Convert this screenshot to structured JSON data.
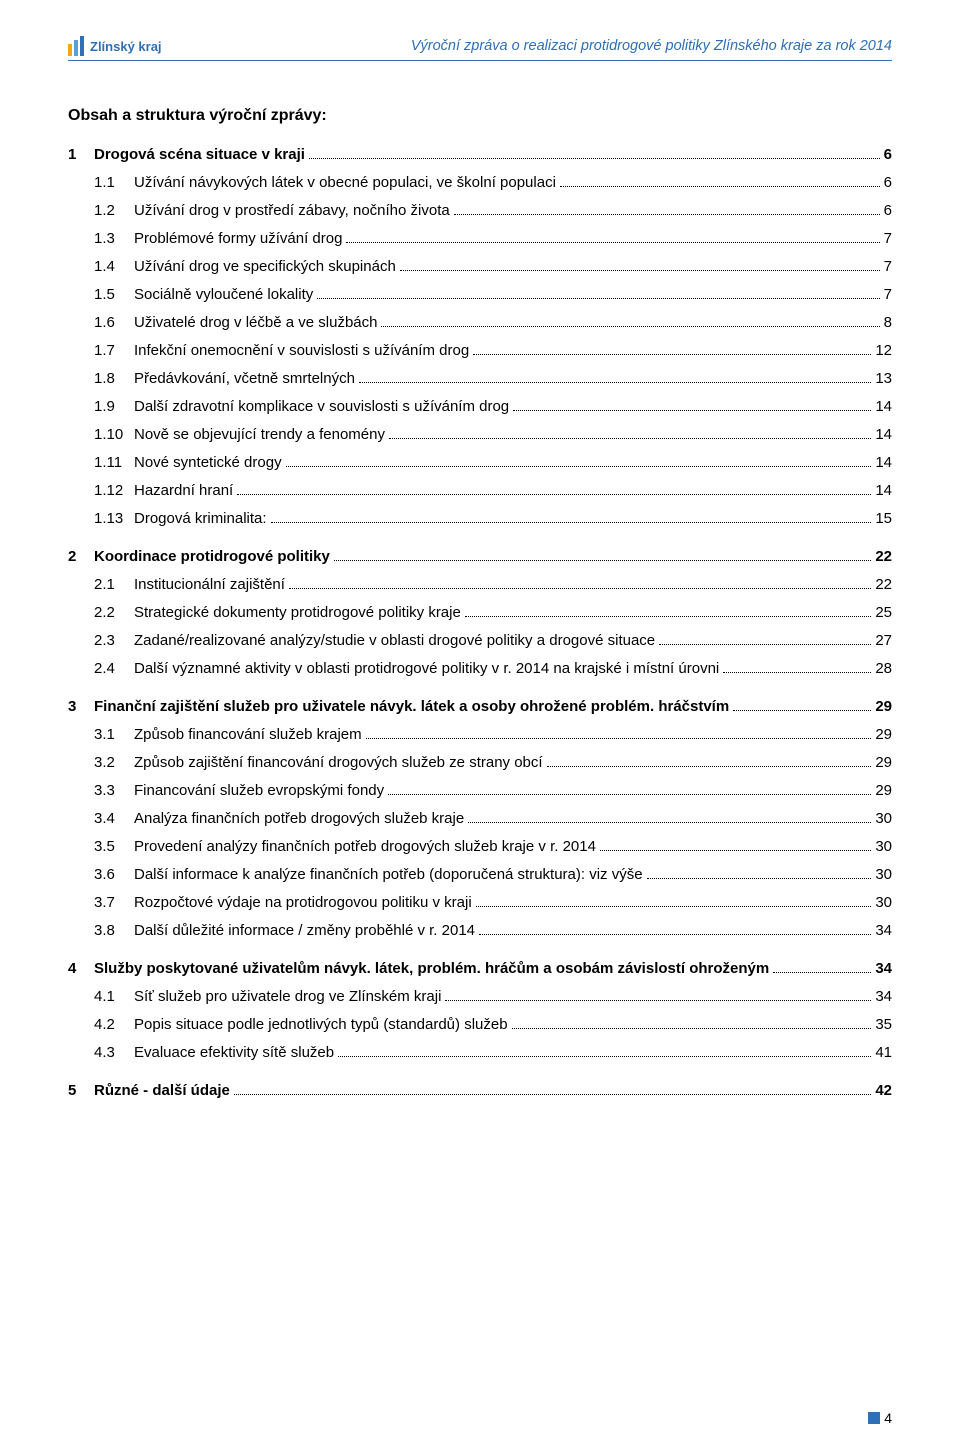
{
  "header": {
    "logo_text": "Zlínský kraj",
    "title": "Výroční zpráva o realizaci protidrogové politiky Zlínského kraje za rok 2014"
  },
  "colors": {
    "brand_blue": "#2e6fb6",
    "brand_orange": "#f3a712",
    "text": "#000000",
    "background": "#ffffff"
  },
  "content_title": "Obsah a struktura výroční zprávy:",
  "toc": [
    {
      "level": 1,
      "num": "1",
      "label": "Drogová scéna situace v kraji",
      "page": "6"
    },
    {
      "level": 2,
      "num": "1.1",
      "label": "Užívání návykových látek v obecné populaci, ve školní populaci",
      "page": "6"
    },
    {
      "level": 2,
      "num": "1.2",
      "label": "Užívání drog v prostředí zábavy, nočního života",
      "page": "6"
    },
    {
      "level": 2,
      "num": "1.3",
      "label": "Problémové formy užívání drog",
      "page": "7"
    },
    {
      "level": 2,
      "num": "1.4",
      "label": "Užívání drog ve specifických skupinách",
      "page": "7"
    },
    {
      "level": 2,
      "num": "1.5",
      "label": "Sociálně vyloučené lokality",
      "page": "7"
    },
    {
      "level": 2,
      "num": "1.6",
      "label": "Uživatelé drog v léčbě a ve službách",
      "page": "8"
    },
    {
      "level": 2,
      "num": "1.7",
      "label": "Infekční onemocnění v souvislosti s užíváním drog",
      "page": "12"
    },
    {
      "level": 2,
      "num": "1.8",
      "label": "Předávkování, včetně smrtelných",
      "page": "13"
    },
    {
      "level": 2,
      "num": "1.9",
      "label": "Další zdravotní komplikace v souvislosti s užíváním drog",
      "page": "14"
    },
    {
      "level": 2,
      "num": "1.10",
      "label": "Nově se objevující trendy a fenomény",
      "page": "14"
    },
    {
      "level": 2,
      "num": "1.11",
      "label": "Nové syntetické drogy",
      "page": "14"
    },
    {
      "level": 2,
      "num": "1.12",
      "label": "Hazardní hraní",
      "page": "14"
    },
    {
      "level": 2,
      "num": "1.13",
      "label": "Drogová kriminalita:",
      "page": "15"
    },
    {
      "level": 1,
      "num": "2",
      "label": "Koordinace protidrogové politiky",
      "page": "22"
    },
    {
      "level": 2,
      "num": "2.1",
      "label": "Institucionální zajištění",
      "page": "22"
    },
    {
      "level": 2,
      "num": "2.2",
      "label": "Strategické dokumenty protidrogové politiky kraje",
      "page": "25"
    },
    {
      "level": 2,
      "num": "2.3",
      "label": "Zadané/realizované analýzy/studie v oblasti drogové politiky a drogové situace",
      "page": "27"
    },
    {
      "level": 2,
      "num": "2.4",
      "label": "Další významné aktivity v oblasti protidrogové politiky v r. 2014 na krajské i místní úrovni",
      "page": "28"
    },
    {
      "level": 1,
      "num": "3",
      "label": "Finanční zajištění služeb pro uživatele návyk. látek a osoby ohrožené problém. hráčstvím",
      "page": "29"
    },
    {
      "level": 2,
      "num": "3.1",
      "label": "Způsob financování služeb krajem",
      "page": "29"
    },
    {
      "level": 2,
      "num": "3.2",
      "label": "Způsob zajištění financování drogových služeb ze strany obcí",
      "page": "29"
    },
    {
      "level": 2,
      "num": "3.3",
      "label": "Financování služeb evropskými fondy",
      "page": "29"
    },
    {
      "level": 2,
      "num": "3.4",
      "label": "Analýza finančních potřeb drogových služeb kraje",
      "page": "30"
    },
    {
      "level": 2,
      "num": "3.5",
      "label": "Provedení analýzy finančních potřeb drogových služeb kraje v r. 2014",
      "page": "30"
    },
    {
      "level": 2,
      "num": "3.6",
      "label": "Další informace k analýze finančních potřeb (doporučená struktura): viz výše",
      "page": "30"
    },
    {
      "level": 2,
      "num": "3.7",
      "label": "Rozpočtové výdaje na protidrogovou politiku v kraji",
      "page": "30"
    },
    {
      "level": 2,
      "num": "3.8",
      "label": "Další důležité informace / změny proběhlé v r. 2014",
      "page": "34"
    },
    {
      "level": 1,
      "num": "4",
      "label": "Služby poskytované uživatelům návyk. látek, problém. hráčům a osobám závislostí ohroženým",
      "page": "34"
    },
    {
      "level": 2,
      "num": "4.1",
      "label": "Síť služeb pro uživatele drog ve Zlínském kraji",
      "page": "34"
    },
    {
      "level": 2,
      "num": "4.2",
      "label": "Popis situace podle jednotlivých typů (standardů) služeb",
      "page": "35"
    },
    {
      "level": 2,
      "num": "4.3",
      "label": "Evaluace efektivity sítě služeb",
      "page": "41"
    },
    {
      "level": 1,
      "num": "5",
      "label": "Různé   -   další údaje",
      "page": "42"
    }
  ],
  "footer": {
    "page_number": "4"
  }
}
